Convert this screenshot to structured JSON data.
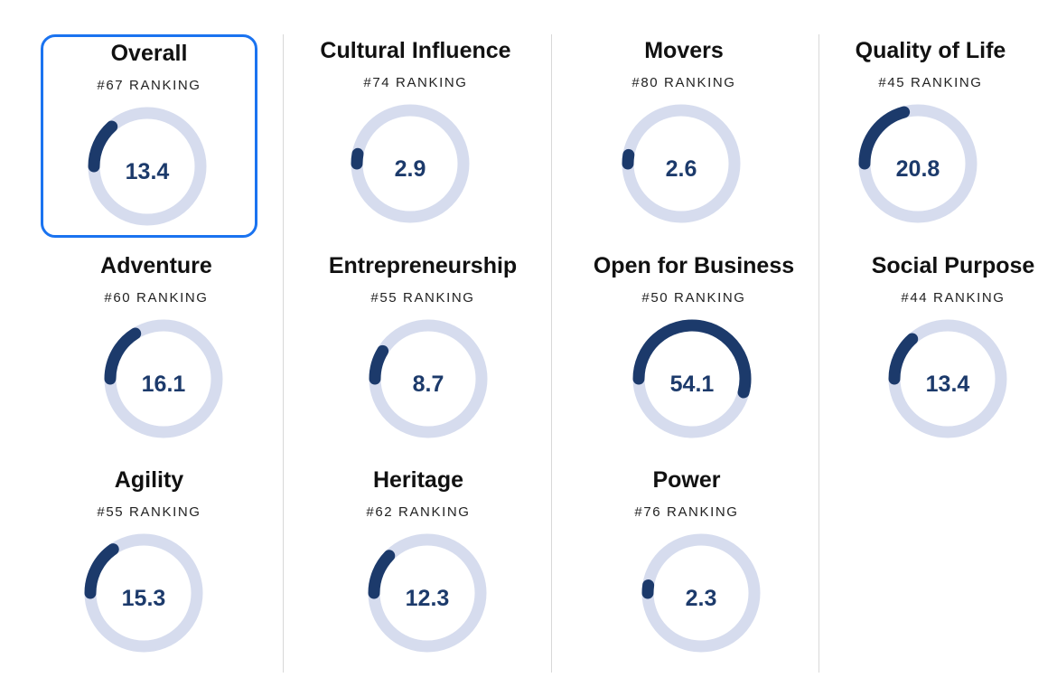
{
  "colors": {
    "track": "#d6dcee",
    "fill": "#1c3a6b",
    "selected_border": "#1a73f0"
  },
  "selected_index": 0,
  "metrics": [
    {
      "title": "Overall",
      "ranking": "#67 RANKING",
      "value": "13.4",
      "fraction": 0.134
    },
    {
      "title": "Cultural Influence",
      "ranking": "#74 RANKING",
      "value": "2.9",
      "fraction": 0.029
    },
    {
      "title": "Movers",
      "ranking": "#80 RANKING",
      "value": "2.6",
      "fraction": 0.026
    },
    {
      "title": "Quality of Life",
      "ranking": "#45 RANKING",
      "value": "20.8",
      "fraction": 0.208
    },
    {
      "title": "Adventure",
      "ranking": "#60 RANKING",
      "value": "16.1",
      "fraction": 0.161
    },
    {
      "title": "Entrepreneurship",
      "ranking": "#55 RANKING",
      "value": "8.7",
      "fraction": 0.087
    },
    {
      "title": "Open for Business",
      "ranking": "#50 RANKING",
      "value": "54.1",
      "fraction": 0.541
    },
    {
      "title": "Social Purpose",
      "ranking": "#44 RANKING",
      "value": "13.4",
      "fraction": 0.134
    },
    {
      "title": "Agility",
      "ranking": "#55 RANKING",
      "value": "15.3",
      "fraction": 0.153
    },
    {
      "title": "Heritage",
      "ranking": "#62 RANKING",
      "value": "12.3",
      "fraction": 0.123
    },
    {
      "title": "Power",
      "ranking": "#76 RANKING",
      "value": "2.3",
      "fraction": 0.023
    }
  ]
}
